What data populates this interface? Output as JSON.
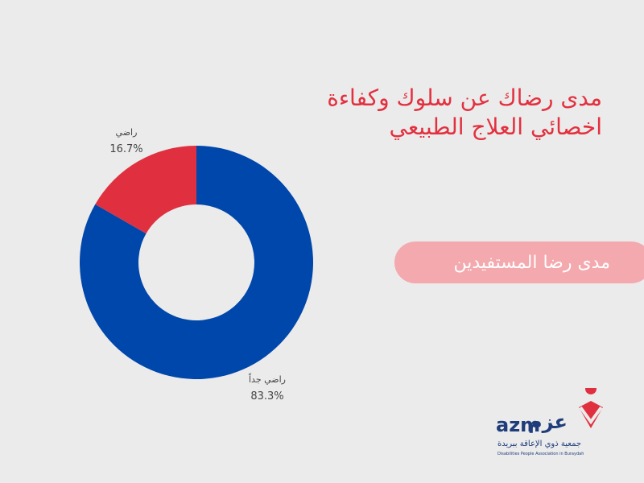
{
  "title": "مدى رضاك عن سلوك وكفاءة اخصائي العلاج الطبيعي",
  "subtitle_pill": "مدى رضا المستفيدين",
  "colors": {
    "background": "#ebebeb",
    "title": "#e3303f",
    "pill": "#f3a9ae",
    "pill_text": "#ffffff",
    "brand": "#1f3d7a"
  },
  "logo": {
    "name_ar": "عزم",
    "name_en": "azm",
    "tagline_ar": "جمعية ذوي الإعاقة ببريدة",
    "tagline_en": "Disabilities People Association in Buraydah"
  },
  "chart_data": {
    "type": "pie",
    "donut": true,
    "categories": [
      "راضي جداً",
      "راضي"
    ],
    "values": [
      83.3,
      16.7
    ],
    "value_labels": [
      "83.3%",
      "16.7%"
    ],
    "colors": [
      "#0047ab",
      "#e0303f"
    ],
    "title": "مدى رضاك عن سلوك وكفاءة اخصائي العلاج الطبيعي"
  }
}
